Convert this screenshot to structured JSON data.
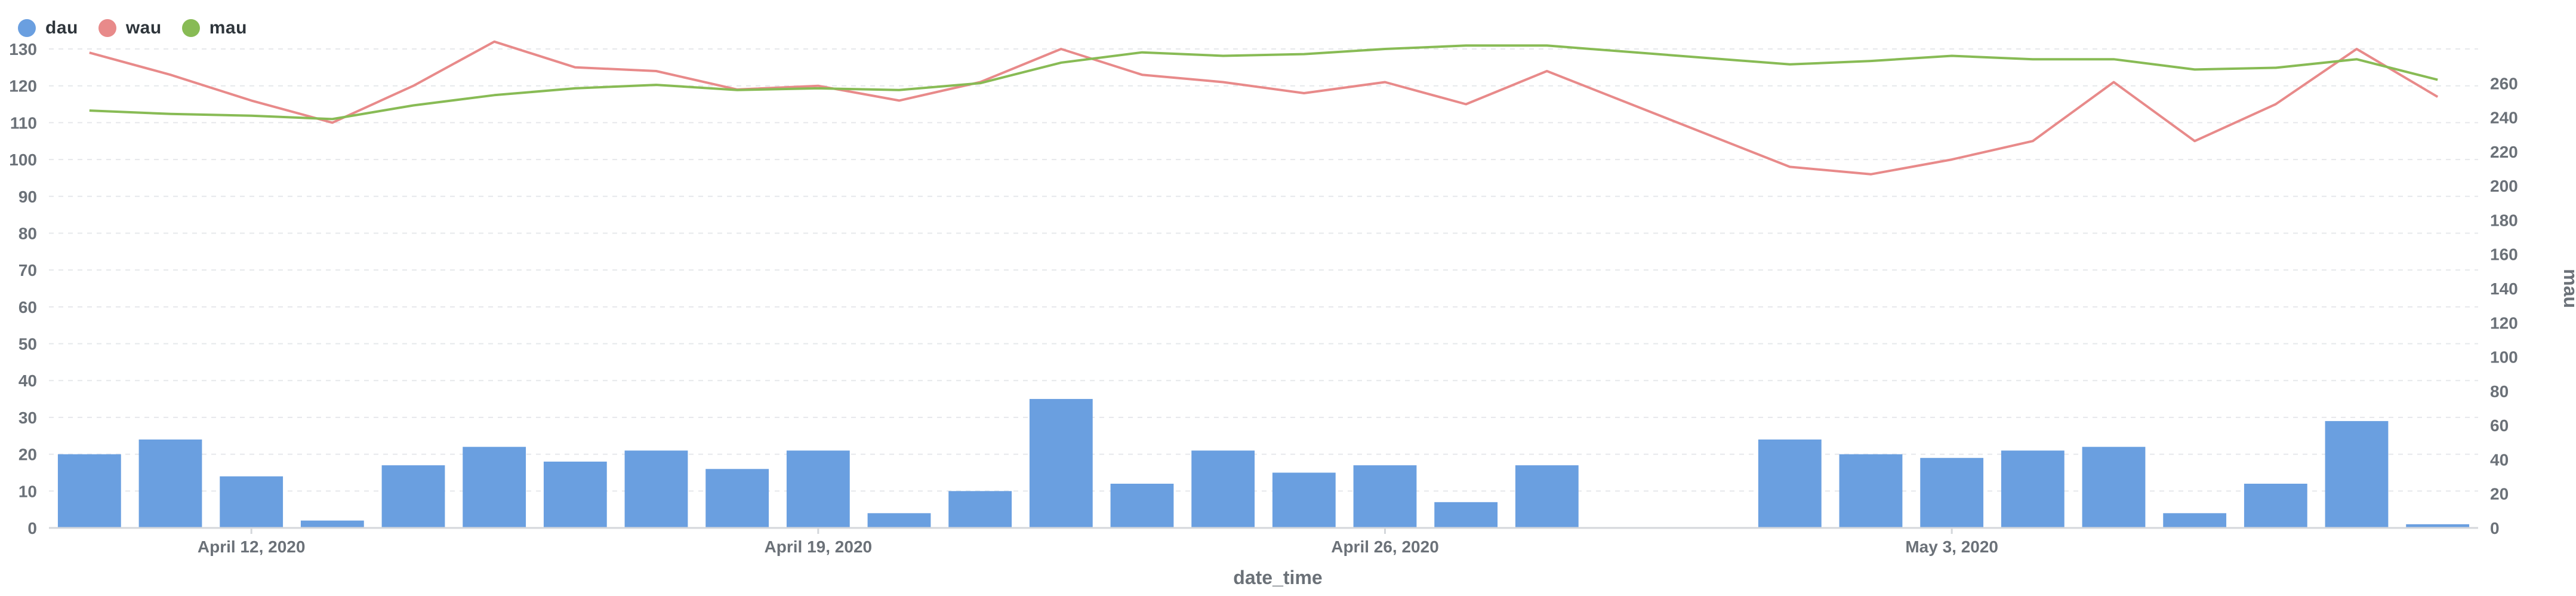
{
  "chart_data": {
    "type": "bar",
    "legend": [
      {
        "name": "dau",
        "color": "#6a9fe0"
      },
      {
        "name": "wau",
        "color": "#e88a8a"
      },
      {
        "name": "mau",
        "color": "#88bb55"
      }
    ],
    "xlabel": "date_time",
    "ylabel_right": "mau",
    "ylim_left": [
      0,
      130
    ],
    "ylim_right": [
      0,
      280
    ],
    "yticks_left": [
      "0",
      "10",
      "20",
      "30",
      "40",
      "50",
      "60",
      "70",
      "80",
      "90",
      "100",
      "110",
      "120",
      "130"
    ],
    "yticks_right": [
      "0",
      "20",
      "40",
      "60",
      "80",
      "100",
      "120",
      "140",
      "160",
      "180",
      "200",
      "220",
      "240",
      "260"
    ],
    "xtick_labels": [
      "April 12, 2020",
      "April 19, 2020",
      "April 26, 2020",
      "May 3, 2020"
    ],
    "x_start": "2020-04-10",
    "x_end": "2020-05-09",
    "grid": true,
    "series": [
      {
        "name": "dau",
        "type": "bar",
        "axis": "left",
        "x": [
          "2020-04-10",
          "2020-04-11",
          "2020-04-12",
          "2020-04-13",
          "2020-04-14",
          "2020-04-15",
          "2020-04-16",
          "2020-04-17",
          "2020-04-18",
          "2020-04-19",
          "2020-04-20",
          "2020-04-21",
          "2020-04-22",
          "2020-04-23",
          "2020-04-24",
          "2020-04-25",
          "2020-04-26",
          "2020-04-27",
          "2020-04-28",
          "2020-04-29",
          "2020-04-30",
          "2020-05-01",
          "2020-05-02",
          "2020-05-03",
          "2020-05-04",
          "2020-05-05",
          "2020-05-06",
          "2020-05-07",
          "2020-05-08",
          "2020-05-09"
        ],
        "values": [
          20,
          24,
          14,
          2,
          17,
          22,
          18,
          21,
          16,
          21,
          4,
          10,
          35,
          12,
          21,
          15,
          17,
          7,
          17,
          null,
          null,
          24,
          20,
          19,
          21,
          22,
          4,
          12,
          29,
          1
        ]
      },
      {
        "name": "wau",
        "type": "line",
        "axis": "left",
        "x": [
          "2020-04-10",
          "2020-04-11",
          "2020-04-12",
          "2020-04-13",
          "2020-04-14",
          "2020-04-15",
          "2020-04-16",
          "2020-04-17",
          "2020-04-18",
          "2020-04-19",
          "2020-04-20",
          "2020-04-21",
          "2020-04-22",
          "2020-04-23",
          "2020-04-24",
          "2020-04-25",
          "2020-04-26",
          "2020-04-27",
          "2020-04-28",
          "2020-05-01",
          "2020-05-02",
          "2020-05-03",
          "2020-05-04",
          "2020-05-05",
          "2020-05-06",
          "2020-05-07",
          "2020-05-08",
          "2020-05-09"
        ],
        "values": [
          129,
          123,
          116,
          110,
          120,
          132,
          125,
          124,
          119,
          120,
          116,
          121,
          130,
          123,
          121,
          118,
          121,
          115,
          124,
          98,
          96,
          100,
          105,
          121,
          105,
          115,
          130,
          117
        ]
      },
      {
        "name": "mau",
        "type": "line",
        "axis": "right",
        "x": [
          "2020-04-10",
          "2020-04-11",
          "2020-04-12",
          "2020-04-13",
          "2020-04-14",
          "2020-04-15",
          "2020-04-16",
          "2020-04-17",
          "2020-04-18",
          "2020-04-19",
          "2020-04-20",
          "2020-04-21",
          "2020-04-22",
          "2020-04-23",
          "2020-04-24",
          "2020-04-25",
          "2020-04-26",
          "2020-04-27",
          "2020-04-28",
          "2020-05-01",
          "2020-05-02",
          "2020-05-03",
          "2020-05-04",
          "2020-05-05",
          "2020-05-06",
          "2020-05-07",
          "2020-05-08",
          "2020-05-09"
        ],
        "values": [
          244,
          242,
          241,
          239,
          247,
          253,
          257,
          259,
          256,
          257,
          256,
          260,
          272,
          278,
          276,
          277,
          280,
          282,
          282,
          271,
          273,
          276,
          274,
          274,
          268,
          269,
          274,
          262
        ]
      }
    ]
  }
}
